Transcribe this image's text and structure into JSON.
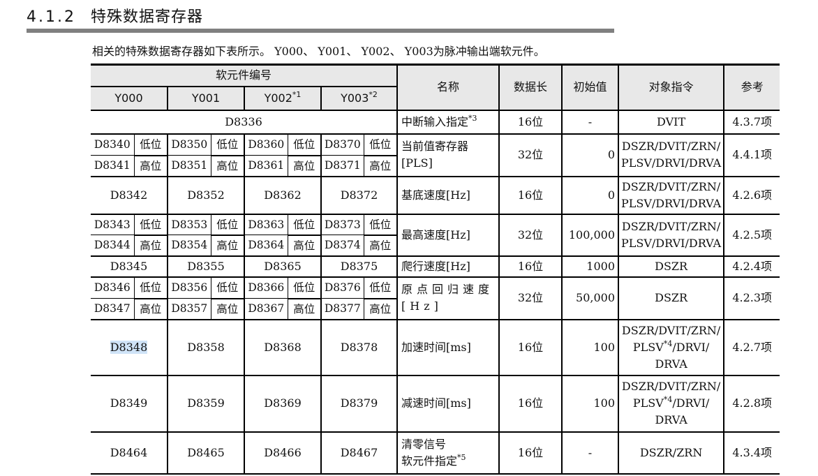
{
  "section": {
    "number": "4.1.2",
    "title": "特殊数据寄存器"
  },
  "intro": "相关的特殊数据寄存器如下表所示。 Y000、 Y001、 Y002、 Y003为脉冲输出端软元件。",
  "header": {
    "device_group": "软元件编号",
    "outputs": [
      {
        "label": "Y000",
        "sup": ""
      },
      {
        "label": "Y001",
        "sup": ""
      },
      {
        "label": "Y002",
        "sup": "*1"
      },
      {
        "label": "Y003",
        "sup": "*2"
      }
    ],
    "name": "名称",
    "length": "数据长",
    "initial": "初始值",
    "instruction": "对象指令",
    "reference": "参考"
  },
  "labels": {
    "low": "低位",
    "high": "高位"
  },
  "rows": [
    {
      "type": "all",
      "device": "D8336",
      "name": [
        [
          {
            "t": "中断输入指定"
          },
          {
            "t": "*3",
            "sup": true
          }
        ]
      ],
      "length": "16位",
      "initial": "-",
      "initial_align": "center",
      "instruction": [
        "DVIT"
      ],
      "reference": "4.3.7项"
    },
    {
      "type": "split",
      "low": [
        "D8340",
        "D8350",
        "D8360",
        "D8370"
      ],
      "high": [
        "D8341",
        "D8351",
        "D8361",
        "D8371"
      ],
      "name": [
        "当前值寄存器",
        "[PLS]"
      ],
      "length": "32位",
      "initial": "0",
      "instruction": [
        "DSZR/DVIT/ZRN/",
        "PLSV/DRVI/DRVA"
      ],
      "reference": "4.4.1项"
    },
    {
      "type": "single",
      "devices": [
        "D8342",
        "D8352",
        "D8362",
        "D8372"
      ],
      "name": [
        "基底速度[Hz]"
      ],
      "length": "16位",
      "initial": "0",
      "instruction": [
        "DSZR/DVIT/ZRN/",
        "PLSV/DRVI/DRVA"
      ],
      "reference": "4.2.6项"
    },
    {
      "type": "split",
      "low": [
        "D8343",
        "D8353",
        "D8363",
        "D8373"
      ],
      "high": [
        "D8344",
        "D8354",
        "D8364",
        "D8374"
      ],
      "name": [
        "最高速度[Hz]"
      ],
      "length": "32位",
      "initial": "100,000",
      "instruction": [
        "DSZR/DVIT/ZRN/",
        "PLSV/DRVI/DRVA"
      ],
      "reference": "4.2.5项"
    },
    {
      "type": "single",
      "devices": [
        "D8345",
        "D8355",
        "D8365",
        "D8375"
      ],
      "name": [
        "爬行速度[Hz]"
      ],
      "length": "16位",
      "initial": "1000",
      "instruction": [
        "DSZR"
      ],
      "reference": "4.2.4项"
    },
    {
      "type": "split",
      "low": [
        "D8346",
        "D8356",
        "D8366",
        "D8376"
      ],
      "high": [
        "D8347",
        "D8357",
        "D8367",
        "D8377"
      ],
      "name": [
        "原点回归速度",
        "[Hz]"
      ],
      "name_spaced": true,
      "length": "32位",
      "initial": "50,000",
      "instruction": [
        "DSZR"
      ],
      "reference": "4.2.3项"
    },
    {
      "type": "single",
      "devices": [
        "D8348",
        "D8358",
        "D8368",
        "D8378"
      ],
      "selected": "D8348",
      "name": [
        "加速时间[ms]"
      ],
      "length": "16位",
      "initial": "100",
      "instruction": [
        "DSZR/DVIT/ZRN/",
        [
          {
            "t": "PLSV"
          },
          {
            "t": "*4",
            "sup": true
          },
          {
            "t": "/DRVI/"
          }
        ],
        "DRVA"
      ],
      "reference": "4.2.7项"
    },
    {
      "type": "single",
      "devices": [
        "D8349",
        "D8359",
        "D8369",
        "D8379"
      ],
      "name": [
        "减速时间[ms]"
      ],
      "length": "16位",
      "initial": "100",
      "instruction": [
        "DSZR/DVIT/ZRN/",
        [
          {
            "t": "PLSV"
          },
          {
            "t": "*4",
            "sup": true
          },
          {
            "t": "/DRVI/"
          }
        ],
        "DRVA"
      ],
      "reference": "4.2.8项"
    },
    {
      "type": "single",
      "devices": [
        "D8464",
        "D8465",
        "D8466",
        "D8467"
      ],
      "name": [
        "清零信号",
        [
          {
            "t": "软元件指定"
          },
          {
            "t": "*5",
            "sup": true
          }
        ]
      ],
      "length": "16位",
      "initial": "-",
      "initial_align": "center",
      "instruction": [
        "DSZR/ZRN"
      ],
      "reference": "4.3.4项"
    }
  ],
  "colors": {
    "header_bg": "#e8e8e8",
    "rule": "#808080",
    "selection": "#cfe3f7"
  }
}
